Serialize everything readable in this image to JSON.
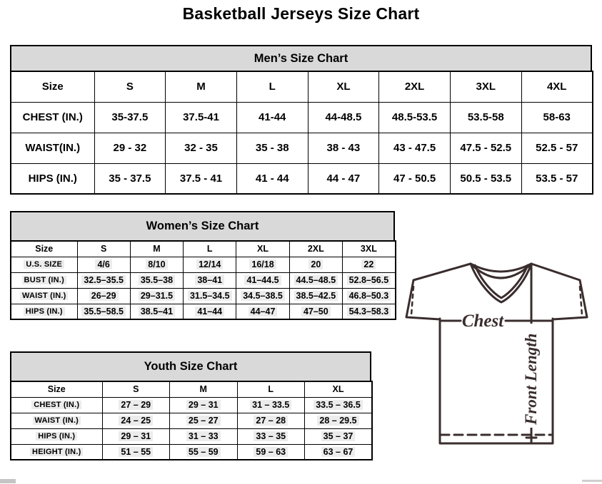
{
  "page_title": "Basketball Jerseys Size Chart",
  "colors": {
    "header_bg": "#d9d9d9",
    "value_highlight": "#ececec",
    "border": "#000000",
    "diagram_stroke": "#3a2d2d"
  },
  "tables": {
    "mens": {
      "title": "Men’s Size Chart",
      "columns": [
        "Size",
        "S",
        "M",
        "L",
        "XL",
        "2XL",
        "3XL",
        "4XL"
      ],
      "rows": [
        {
          "label": "CHEST (IN.)",
          "values": [
            "35-37.5",
            "37.5-41",
            "41-44",
            "44-48.5",
            "48.5-53.5",
            "53.5-58",
            "58-63"
          ]
        },
        {
          "label": "WAIST(IN.)",
          "values": [
            "29 - 32",
            "32 - 35",
            "35 - 38",
            "38 - 43",
            "43 - 47.5",
            "47.5 - 52.5",
            "52.5 - 57"
          ]
        },
        {
          "label": "HIPS (IN.)",
          "values": [
            "35 - 37.5",
            "37.5 - 41",
            "41 - 44",
            "44 - 47",
            "47 - 50.5",
            "50.5 - 53.5",
            "53.5 - 57"
          ]
        }
      ]
    },
    "womens": {
      "title": "Women’s Size Chart",
      "columns": [
        "Size",
        "S",
        "M",
        "L",
        "XL",
        "2XL",
        "3XL"
      ],
      "rows": [
        {
          "label": "U.S. SIZE",
          "values": [
            "4/6",
            "8/10",
            "12/14",
            "16/18",
            "20",
            "22"
          ]
        },
        {
          "label": "BUST (IN.)",
          "values": [
            "32.5–35.5",
            "35.5–38",
            "38–41",
            "41–44.5",
            "44.5–48.5",
            "52.8–56.5"
          ]
        },
        {
          "label": "WAIST (IN.)",
          "values": [
            "26–29",
            "29–31.5",
            "31.5–34.5",
            "34.5–38.5",
            "38.5–42.5",
            "46.8–50.3"
          ]
        },
        {
          "label": "HIPS (IN.)",
          "values": [
            "35.5–58.5",
            "38.5–41",
            "41–44",
            "44–47",
            "47–50",
            "54.3–58.3"
          ]
        }
      ]
    },
    "youth": {
      "title": "Youth Size Chart",
      "columns": [
        "Size",
        "S",
        "M",
        "L",
        "XL"
      ],
      "rows": [
        {
          "label": "CHEST (IN.)",
          "values": [
            "27 – 29",
            "29 – 31",
            "31 – 33.5",
            "33.5 – 36.5"
          ]
        },
        {
          "label": "WAIST (IN.)",
          "values": [
            "24 – 25",
            "25 – 27",
            "27 – 28",
            "28 – 29.5"
          ]
        },
        {
          "label": "HIPS (IN.)",
          "values": [
            "29 – 31",
            "31 – 33",
            "33 – 35",
            "35 – 37"
          ]
        },
        {
          "label": "HEIGHT (IN.)",
          "values": [
            "51 – 55",
            "55 – 59",
            "59 – 63",
            "63 – 67"
          ]
        }
      ]
    }
  },
  "diagram": {
    "chest_label": "Chest",
    "front_length_label": "Front Length"
  }
}
